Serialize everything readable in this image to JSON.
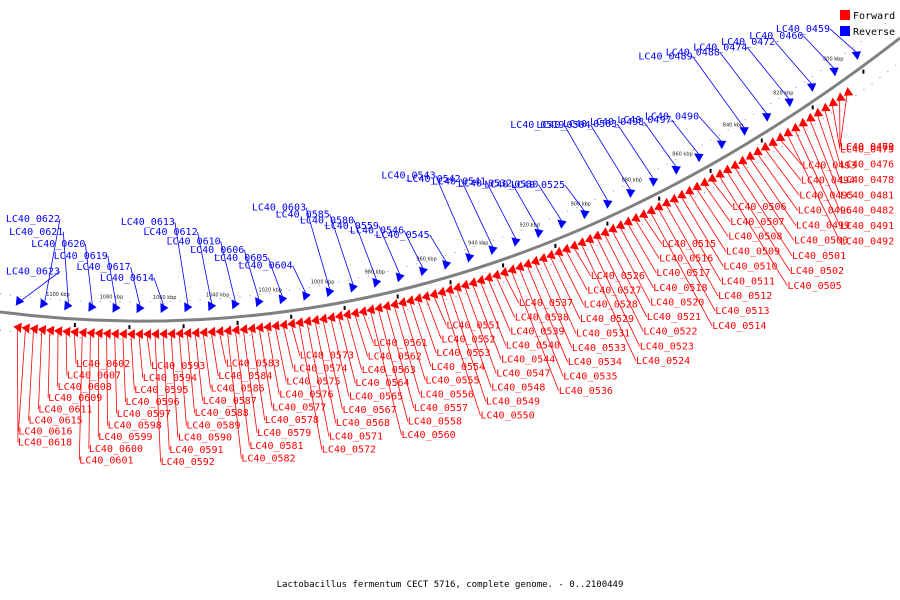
{
  "caption": "Lactobacillus fermentum CECT 5716, complete genome. - 0..2100449",
  "legend": [
    {
      "label": "Forward",
      "color": "#ff0000"
    },
    {
      "label": "Reverse",
      "color": "#0000ff"
    }
  ],
  "colors": {
    "forward": "#ff0000",
    "reverse": "#0000ff",
    "backbone": "#808080"
  },
  "ticks": [
    "1100 kbp",
    "1080 kbp",
    "1060 kbp",
    "1040 kbp",
    "1020 kbp",
    "1000 kbp",
    "980 kbp",
    "960 kbp",
    "940 kbp",
    "920 kbp",
    "900 kbp",
    "880 kbp",
    "860 kbp",
    "840 kbp",
    "820 kbp",
    "800 kbp"
  ],
  "reverse_labels": [
    "LC40_0459",
    "LC40_0460",
    "LC40_0472",
    "LC40_0474",
    "LC40_0488",
    "LC40_0489",
    "LC40_0490",
    "LC40_0497",
    "LC40_0498",
    "LC40_0503",
    "LC40_0504",
    "LC40_0519",
    "LC40_0525",
    "LC40_0530",
    "LC40_0532",
    "LC40_0541",
    "LC40_0542",
    "LC40_0543",
    "LC40_0545",
    "LC40_0546",
    "LC40_0559",
    "LC40_0580",
    "LC40_0585",
    "LC40_0603",
    "LC40_0604",
    "LC40_0605",
    "LC40_0606",
    "LC40_0610",
    "LC40_0612",
    "LC40_0613",
    "LC40_0614",
    "LC40_0617",
    "LC40_0619",
    "LC40_0620",
    "LC40_0621",
    "LC40_0622",
    "LC40_0623"
  ],
  "forward_labels": [
    "LC40_0469",
    "LC40_0473",
    "LC40_0475",
    "LC40_0476",
    "LC40_0478",
    "LC40_0481",
    "LC40_0482",
    "LC40_0491",
    "LC40_0492",
    "LC40_0493",
    "LC40_0494",
    "LC40_0495",
    "LC40_0496",
    "LC40_0499",
    "LC40_0500",
    "LC40_0501",
    "LC40_0502",
    "LC40_0505",
    "LC40_0506",
    "LC40_0507",
    "LC40_0508",
    "LC40_0509",
    "LC40_0510",
    "LC40_0511",
    "LC40_0512",
    "LC40_0513",
    "LC40_0514",
    "LC40_0515",
    "LC40_0516",
    "LC40_0517",
    "LC40_0518",
    "LC40_0520",
    "LC40_0521",
    "LC40_0522",
    "LC40_0523",
    "LC40_0524",
    "LC40_0526",
    "LC40_0527",
    "LC40_0528",
    "LC40_0529",
    "LC40_0531",
    "LC40_0533",
    "LC40_0534",
    "LC40_0535",
    "LC40_0536",
    "LC40_0537",
    "LC40_0538",
    "LC40_0539",
    "LC40_0540",
    "LC40_0544",
    "LC40_0547",
    "LC40_0548",
    "LC40_0549",
    "LC40_0550",
    "LC40_0551",
    "LC40_0552",
    "LC40_0553",
    "LC40_0554",
    "LC40_0555",
    "LC40_0556",
    "LC40_0557",
    "LC40_0558",
    "LC40_0560",
    "LC40_0561",
    "LC40_0562",
    "LC40_0563",
    "LC40_0564",
    "LC40_0565",
    "LC40_0567",
    "LC40_0568",
    "LC40_0571",
    "LC40_0572",
    "LC40_0573",
    "LC40_0574",
    "LC40_0575",
    "LC40_0576",
    "LC40_0577",
    "LC40_0578",
    "LC40_0579",
    "LC40_0581",
    "LC40_0582",
    "LC40_0583",
    "LC40_0584",
    "LC40_0586",
    "LC40_0587",
    "LC40_0588",
    "LC40_0589",
    "LC40_0590",
    "LC40_0591",
    "LC40_0592",
    "LC40_0593",
    "LC40_0594",
    "LC40_0595",
    "LC40_0596",
    "LC40_0597",
    "LC40_0598",
    "LC40_0599",
    "LC40_0600",
    "LC40_0601",
    "LC40_0602",
    "LC40_0607",
    "LC40_0608",
    "LC40_0609",
    "LC40_0611",
    "LC40_0615",
    "LC40_0616",
    "LC40_0618"
  ]
}
